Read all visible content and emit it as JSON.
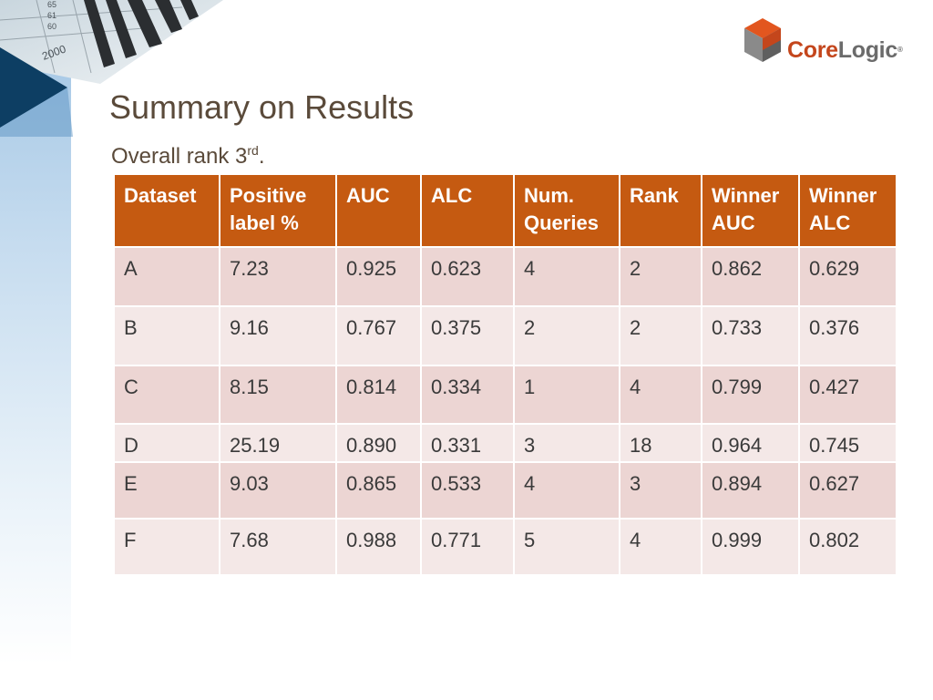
{
  "slide": {
    "title": "Summary on Results",
    "subtitle_text": "Overall rank 3",
    "subtitle_sup": "rd",
    "subtitle_end": "."
  },
  "logo": {
    "core": "Core",
    "logic": "Logic",
    "reg": "®",
    "colors": {
      "core": "#c4461c",
      "logic": "#6b6b6b"
    }
  },
  "decor": {
    "ledger_numbers": [
      "65",
      "61",
      "60",
      "2000"
    ]
  },
  "table": {
    "columns": [
      "Dataset",
      "Positive label %",
      "AUC",
      "ALC",
      "Num. Queries",
      "Rank",
      "Winner AUC",
      "Winner ALC"
    ],
    "rows": [
      [
        "A",
        "7.23",
        "0.925",
        "0.623",
        "4",
        "2",
        "0.862",
        "0.629"
      ],
      [
        "B",
        "9.16",
        "0.767",
        "0.375",
        "2",
        "2",
        "0.733",
        "0.376"
      ],
      [
        "C",
        "8.15",
        "0.814",
        "0.334",
        "1",
        "4",
        "0.799",
        "0.427"
      ],
      [
        "D",
        "25.19",
        "0.890",
        "0.331",
        "3",
        "18",
        "0.964",
        "0.745"
      ],
      [
        "E",
        "9.03",
        "0.865",
        "0.533",
        "4",
        "3",
        "0.894",
        "0.627"
      ],
      [
        "F",
        "7.68",
        "0.988",
        "0.771",
        "5",
        "4",
        "0.999",
        "0.802"
      ]
    ]
  },
  "colors": {
    "header_bg": "#c55a11",
    "row_odd": "#ecd5d3",
    "row_even": "#f4e8e7",
    "title": "#5a4a3a"
  }
}
